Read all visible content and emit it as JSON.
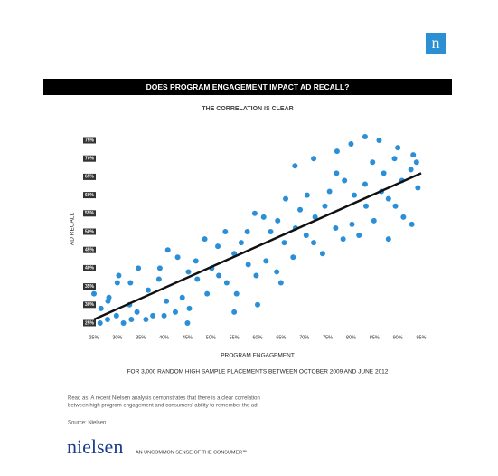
{
  "logo_mark": "n",
  "chart_data": {
    "type": "scatter",
    "title": "DOES PROGRAM ENGAGEMENT IMPACT AD RECALL?",
    "subtitle": "THE CORRELATION IS CLEAR",
    "x_label": "PROGRAM ENGAGEMENT",
    "y_label": "AD RECALL",
    "footnote": "FOR 3,000 RANDOM HIGH SAMPLE PLACEMENTS BETWEEN OCTOBER 2009 AND JUNE 2012",
    "color": "#2b8fd8",
    "trend_color": "#111111",
    "x": [
      25.0,
      26.3,
      26.5,
      27.9,
      28.2,
      29.8,
      30.3,
      31.3,
      32.6,
      32.8,
      34.2,
      34.5,
      36.1,
      36.6,
      37.6,
      38.9,
      39.1,
      40.5,
      40.8,
      42.4,
      42.9,
      43.9,
      45.2,
      45.4,
      46.8,
      47.1,
      48.7,
      49.2,
      50.2,
      51.5,
      51.7,
      53.1,
      53.4,
      55.0,
      55.5,
      56.5,
      57.8,
      58.0,
      59.4,
      59.7,
      61.3,
      61.8,
      62.8,
      64.1,
      64.3,
      65.7,
      66.0,
      67.6,
      68.1,
      69.1,
      70.4,
      70.6,
      72.0,
      72.3,
      73.9,
      74.4,
      75.4,
      76.7,
      76.9,
      78.3,
      78.6,
      80.2,
      80.7,
      81.7,
      83.0,
      83.2,
      84.6,
      84.9,
      86.5,
      87.0,
      88.0,
      89.3,
      89.5,
      90.9,
      91.2,
      92.8,
      93.3,
      94.3,
      80,
      83,
      77,
      86,
      72,
      90,
      68,
      94,
      30,
      28,
      33,
      45,
      40,
      60,
      55,
      65,
      88,
      93
    ],
    "values": [
      33,
      25,
      29,
      26,
      32,
      27,
      38,
      25,
      30,
      36,
      28,
      40,
      26,
      34,
      27,
      37,
      40,
      31,
      45,
      28,
      43,
      32,
      39,
      29,
      42,
      37,
      48,
      33,
      40,
      46,
      38,
      50,
      36,
      44,
      33,
      47,
      50,
      41,
      55,
      38,
      54,
      42,
      50,
      39,
      53,
      47,
      59,
      43,
      51,
      56,
      49,
      60,
      47,
      54,
      44,
      57,
      61,
      51,
      66,
      48,
      64,
      52,
      60,
      49,
      63,
      57,
      69,
      53,
      61,
      66,
      59,
      70,
      57,
      64,
      54,
      67,
      71,
      62,
      74,
      76,
      72,
      75,
      70,
      73,
      68,
      69,
      36,
      31,
      26,
      25,
      27,
      30,
      28,
      36,
      48,
      52
    ],
    "trend_line": {
      "x": [
        25,
        95
      ],
      "y": [
        26,
        66
      ]
    },
    "xlim": [
      25,
      95
    ],
    "ylim": [
      25,
      75
    ],
    "xticks": [
      {
        "value": 25,
        "label": "25%"
      },
      {
        "value": 30,
        "label": "30%"
      },
      {
        "value": 35,
        "label": "35%"
      },
      {
        "value": 40,
        "label": "40%"
      },
      {
        "value": 45,
        "label": "45%"
      },
      {
        "value": 50,
        "label": "50%"
      },
      {
        "value": 55,
        "label": "55%"
      },
      {
        "value": 60,
        "label": "60%"
      },
      {
        "value": 65,
        "label": "65%"
      },
      {
        "value": 70,
        "label": "70%"
      },
      {
        "value": 75,
        "label": "75%"
      },
      {
        "value": 80,
        "label": "80%"
      },
      {
        "value": 85,
        "label": "85%"
      },
      {
        "value": 90,
        "label": "90%"
      },
      {
        "value": 95,
        "label": "95%"
      }
    ],
    "yticks": [
      {
        "value": 25,
        "label": "25%"
      },
      {
        "value": 30,
        "label": "30%"
      },
      {
        "value": 35,
        "label": "35%"
      },
      {
        "value": 40,
        "label": "40%"
      },
      {
        "value": 45,
        "label": "45%"
      },
      {
        "value": 50,
        "label": "50%"
      },
      {
        "value": 55,
        "label": "55%"
      },
      {
        "value": 60,
        "label": "60%"
      },
      {
        "value": 65,
        "label": "65%"
      },
      {
        "value": 70,
        "label": "70%"
      },
      {
        "value": 75,
        "label": "75%"
      }
    ]
  },
  "read_as": [
    "Read as: A recent Nielsen analysis demonstrates that there is a clear correlation",
    "between high program engagement and consumers' ability to remember the ad."
  ],
  "source": "Source: Nielsen",
  "brand": "nielsen",
  "tagline": "AN UNCOMMON SENSE OF THE CONSUMER℠"
}
